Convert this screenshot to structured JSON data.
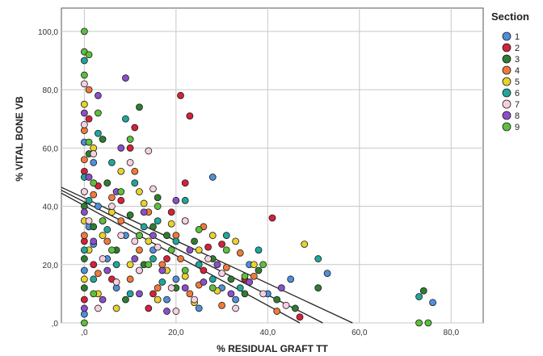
{
  "chart_data": {
    "type": "scatter",
    "title": "",
    "xlabel": "% RESIDUAL GRAFT TT",
    "ylabel": "% VITAL BONE VB",
    "xlim": [
      -5,
      87
    ],
    "ylim": [
      0,
      108
    ],
    "x_ticks": [
      {
        "value": 0,
        "label": ",0"
      },
      {
        "value": 20,
        "label": "20,0"
      },
      {
        "value": 40,
        "label": "40,0"
      },
      {
        "value": 60,
        "label": "60,0"
      },
      {
        "value": 80,
        "label": "80,0"
      }
    ],
    "y_ticks": [
      {
        "value": 0,
        "label": ",0"
      },
      {
        "value": 20,
        "label": "20,0"
      },
      {
        "value": 40,
        "label": "40,0"
      },
      {
        "value": 60,
        "label": "60,0"
      },
      {
        "value": 80,
        "label": "80,0"
      },
      {
        "value": 100,
        "label": "100,0"
      }
    ],
    "grid": true,
    "legend": {
      "title": "Section",
      "placement": "right"
    },
    "series": [
      {
        "name": "1",
        "color": "#4f8fdc",
        "points": [
          [
            0,
            18
          ],
          [
            0,
            45
          ],
          [
            0,
            62
          ],
          [
            1,
            33
          ],
          [
            2,
            27
          ],
          [
            3,
            40
          ],
          [
            5,
            22
          ],
          [
            7,
            12
          ],
          [
            9,
            30
          ],
          [
            12,
            18
          ],
          [
            15,
            25
          ],
          [
            18,
            8
          ],
          [
            20,
            15
          ],
          [
            22,
            35
          ],
          [
            25,
            5
          ],
          [
            28,
            50
          ],
          [
            30,
            12
          ],
          [
            33,
            8
          ],
          [
            36,
            20
          ],
          [
            40,
            10
          ],
          [
            45,
            15
          ],
          [
            53,
            17
          ],
          [
            76,
            7
          ],
          [
            0,
            3
          ],
          [
            2,
            55
          ]
        ]
      },
      {
        "name": "2",
        "color": "#d6213a",
        "points": [
          [
            0,
            52
          ],
          [
            0,
            28
          ],
          [
            1,
            70
          ],
          [
            2,
            20
          ],
          [
            4,
            35
          ],
          [
            6,
            15
          ],
          [
            8,
            42
          ],
          [
            10,
            60
          ],
          [
            12,
            30
          ],
          [
            15,
            10
          ],
          [
            18,
            22
          ],
          [
            21,
            78
          ],
          [
            23,
            71
          ],
          [
            22,
            48
          ],
          [
            26,
            18
          ],
          [
            30,
            27
          ],
          [
            35,
            15
          ],
          [
            41,
            36
          ],
          [
            47,
            2
          ],
          [
            0,
            8
          ],
          [
            3,
            47
          ],
          [
            11,
            67
          ],
          [
            14,
            5
          ],
          [
            19,
            38
          ],
          [
            27,
            26
          ]
        ]
      },
      {
        "name": "3",
        "color": "#2e7d32",
        "points": [
          [
            0,
            40
          ],
          [
            0,
            12
          ],
          [
            1,
            58
          ],
          [
            2,
            33
          ],
          [
            5,
            48
          ],
          [
            7,
            25
          ],
          [
            10,
            37
          ],
          [
            12,
            74
          ],
          [
            13,
            20
          ],
          [
            16,
            43
          ],
          [
            18,
            30
          ],
          [
            20,
            12
          ],
          [
            24,
            28
          ],
          [
            28,
            22
          ],
          [
            32,
            15
          ],
          [
            35,
            10
          ],
          [
            38,
            18
          ],
          [
            42,
            8
          ],
          [
            46,
            5
          ],
          [
            51,
            12
          ],
          [
            74,
            11
          ],
          [
            0,
            22
          ],
          [
            4,
            63
          ],
          [
            9,
            8
          ],
          [
            15,
            33
          ]
        ]
      },
      {
        "name": "4",
        "color": "#f07a3a",
        "points": [
          [
            0,
            30
          ],
          [
            0,
            66
          ],
          [
            1,
            80
          ],
          [
            2,
            44
          ],
          [
            3,
            17
          ],
          [
            5,
            28
          ],
          [
            8,
            35
          ],
          [
            10,
            15
          ],
          [
            12,
            25
          ],
          [
            14,
            38
          ],
          [
            17,
            20
          ],
          [
            20,
            30
          ],
          [
            23,
            10
          ],
          [
            26,
            33
          ],
          [
            30,
            6
          ],
          [
            34,
            24
          ],
          [
            37,
            16
          ],
          [
            42,
            4
          ],
          [
            0,
            56
          ],
          [
            6,
            43
          ],
          [
            11,
            52
          ],
          [
            16,
            12
          ],
          [
            21,
            22
          ],
          [
            25,
            13
          ],
          [
            31,
            19
          ]
        ]
      },
      {
        "name": "5",
        "color": "#e8d22e",
        "points": [
          [
            0,
            35
          ],
          [
            0,
            75
          ],
          [
            1,
            25
          ],
          [
            2,
            60
          ],
          [
            3,
            10
          ],
          [
            6,
            38
          ],
          [
            8,
            52
          ],
          [
            10,
            20
          ],
          [
            12,
            45
          ],
          [
            14,
            28
          ],
          [
            16,
            8
          ],
          [
            19,
            34
          ],
          [
            22,
            16
          ],
          [
            25,
            25
          ],
          [
            29,
            11
          ],
          [
            33,
            28
          ],
          [
            37,
            20
          ],
          [
            48,
            27
          ],
          [
            0,
            15
          ],
          [
            4,
            30
          ],
          [
            7,
            5
          ],
          [
            13,
            41
          ],
          [
            18,
            18
          ],
          [
            24,
            7
          ],
          [
            28,
            30
          ]
        ]
      },
      {
        "name": "6",
        "color": "#21a69a",
        "points": [
          [
            0,
            50
          ],
          [
            0,
            90
          ],
          [
            1,
            42
          ],
          [
            2,
            15
          ],
          [
            3,
            65
          ],
          [
            5,
            32
          ],
          [
            7,
            20
          ],
          [
            9,
            70
          ],
          [
            11,
            48
          ],
          [
            13,
            33
          ],
          [
            15,
            22
          ],
          [
            17,
            14
          ],
          [
            20,
            28
          ],
          [
            22,
            42
          ],
          [
            25,
            20
          ],
          [
            28,
            15
          ],
          [
            31,
            30
          ],
          [
            34,
            12
          ],
          [
            38,
            25
          ],
          [
            51,
            22
          ],
          [
            73,
            9
          ],
          [
            0,
            25
          ],
          [
            6,
            55
          ],
          [
            10,
            10
          ],
          [
            16,
            35
          ]
        ]
      },
      {
        "name": "7",
        "color": "#f7d0e0",
        "points": [
          [
            0,
            45
          ],
          [
            0,
            82
          ],
          [
            1,
            35
          ],
          [
            2,
            58
          ],
          [
            4,
            22
          ],
          [
            6,
            40
          ],
          [
            8,
            30
          ],
          [
            10,
            55
          ],
          [
            12,
            18
          ],
          [
            14,
            59
          ],
          [
            16,
            26
          ],
          [
            19,
            12
          ],
          [
            22,
            35
          ],
          [
            24,
            8
          ],
          [
            27,
            22
          ],
          [
            30,
            17
          ],
          [
            33,
            5
          ],
          [
            39,
            10
          ],
          [
            44,
            6
          ],
          [
            0,
            68
          ],
          [
            3,
            5
          ],
          [
            7,
            14
          ],
          [
            11,
            28
          ],
          [
            15,
            46
          ],
          [
            20,
            4
          ]
        ]
      },
      {
        "name": "8",
        "color": "#8b4fc8",
        "points": [
          [
            0,
            38
          ],
          [
            0,
            72
          ],
          [
            1,
            50
          ],
          [
            2,
            28
          ],
          [
            3,
            78
          ],
          [
            5,
            18
          ],
          [
            7,
            45
          ],
          [
            9,
            84
          ],
          [
            11,
            22
          ],
          [
            13,
            38
          ],
          [
            15,
            30
          ],
          [
            17,
            18
          ],
          [
            20,
            42
          ],
          [
            23,
            25
          ],
          [
            26,
            14
          ],
          [
            29,
            20
          ],
          [
            32,
            10
          ],
          [
            36,
            14
          ],
          [
            43,
            12
          ],
          [
            0,
            5
          ],
          [
            4,
            8
          ],
          [
            8,
            60
          ],
          [
            12,
            10
          ],
          [
            18,
            4
          ],
          [
            22,
            12
          ]
        ]
      },
      {
        "name": "9",
        "color": "#5dbf3e",
        "points": [
          [
            0,
            100
          ],
          [
            0,
            93
          ],
          [
            0,
            85
          ],
          [
            1,
            62
          ],
          [
            1,
            92
          ],
          [
            2,
            48
          ],
          [
            3,
            72
          ],
          [
            4,
            35
          ],
          [
            6,
            25
          ],
          [
            8,
            45
          ],
          [
            10,
            63
          ],
          [
            12,
            30
          ],
          [
            14,
            20
          ],
          [
            16,
            40
          ],
          [
            19,
            25
          ],
          [
            22,
            18
          ],
          [
            25,
            32
          ],
          [
            28,
            12
          ],
          [
            31,
            25
          ],
          [
            35,
            16
          ],
          [
            39,
            20
          ],
          [
            73,
            0
          ],
          [
            75,
            0
          ],
          [
            0,
            0
          ],
          [
            2,
            10
          ]
        ]
      }
    ],
    "fit_lines": [
      {
        "from": [
          -5,
          46.5
        ],
        "to": [
          58.5,
          0
        ]
      },
      {
        "from": [
          -5,
          45.5
        ],
        "to": [
          52,
          0
        ]
      },
      {
        "from": [
          -5,
          44.5
        ],
        "to": [
          47,
          0
        ]
      }
    ]
  }
}
